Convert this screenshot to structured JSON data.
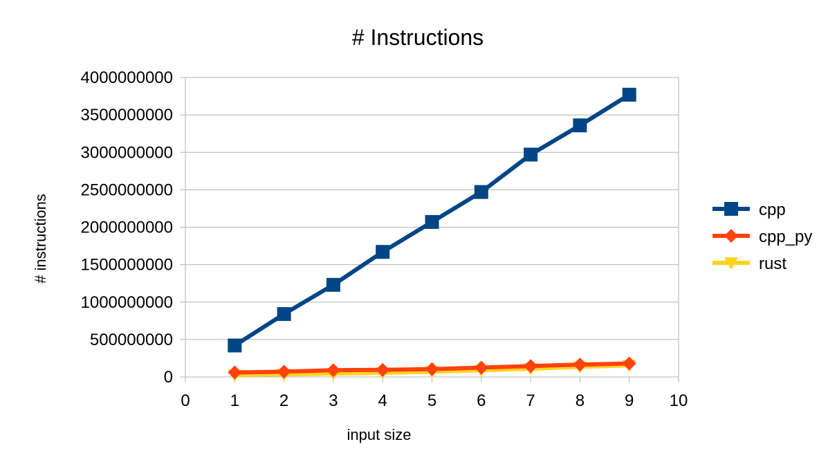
{
  "chart_data": {
    "type": "line",
    "title": "# Instructions",
    "xlabel": "input size",
    "ylabel": "# instructions",
    "xlim": [
      0,
      10
    ],
    "ylim": [
      0,
      4000000000
    ],
    "x_ticks": [
      "0",
      "1",
      "2",
      "3",
      "4",
      "5",
      "6",
      "7",
      "8",
      "9",
      "10"
    ],
    "y_ticks": [
      "0",
      "500000000",
      "1000000000",
      "1500000000",
      "2000000000",
      "2500000000",
      "3000000000",
      "3500000000",
      "4000000000"
    ],
    "grid": "horizontal",
    "legend_position": "right",
    "x": [
      1,
      2,
      3,
      4,
      5,
      6,
      7,
      8,
      9
    ],
    "series": [
      {
        "name": "cpp",
        "color": "#004586",
        "marker": "square",
        "values": [
          420000000,
          840000000,
          1230000000,
          1670000000,
          2070000000,
          2470000000,
          2970000000,
          3360000000,
          3770000000
        ]
      },
      {
        "name": "cpp_py",
        "color": "#ff420e",
        "marker": "diamond",
        "values": [
          60000000,
          70000000,
          90000000,
          95000000,
          105000000,
          125000000,
          145000000,
          165000000,
          180000000
        ]
      },
      {
        "name": "rust",
        "color": "#ffd320",
        "marker": "triangle-down",
        "values": [
          25000000,
          35000000,
          45000000,
          55000000,
          70000000,
          90000000,
          110000000,
          135000000,
          155000000
        ]
      }
    ]
  }
}
